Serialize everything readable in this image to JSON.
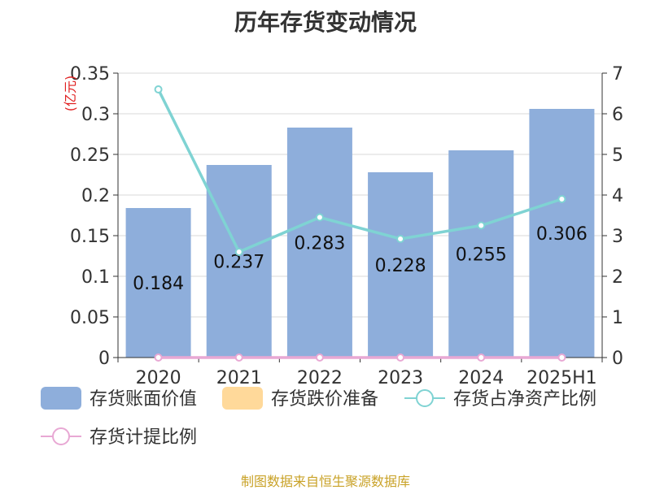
{
  "title": "历年存货变动情况",
  "footer": "制图数据来自恒生聚源数据库",
  "chart_data": {
    "type": "bar",
    "title": "历年存货变动情况",
    "categories": [
      "2020",
      "2021",
      "2022",
      "2023",
      "2024",
      "2025H1"
    ],
    "y_left": {
      "label": "(亿元)",
      "ylim": [
        0,
        0.35
      ],
      "ticks": [
        "0",
        "0.05",
        "0.1",
        "0.15",
        "0.2",
        "0.25",
        "0.3",
        "0.35"
      ]
    },
    "y_right": {
      "ylim": [
        0,
        7
      ],
      "ticks": [
        "0",
        "1",
        "2",
        "3",
        "4",
        "5",
        "6",
        "7"
      ]
    },
    "grid": true,
    "legend_position": "bottom",
    "series": [
      {
        "name": "存货账面价值",
        "type": "bar",
        "axis": "left",
        "color": "#8eaedb",
        "values": [
          0.184,
          0.237,
          0.283,
          0.228,
          0.255,
          0.306
        ],
        "labels": [
          "0.184",
          "0.237",
          "0.283",
          "0.228",
          "0.255",
          "0.306"
        ]
      },
      {
        "name": "存货跌价准备",
        "type": "bar",
        "axis": "left",
        "color": "#ffd99a",
        "values": [
          0,
          0,
          0,
          0,
          0,
          0
        ]
      },
      {
        "name": "存货占净资产比例",
        "type": "line",
        "axis": "right",
        "color": "#7fd3d3",
        "values": [
          6.6,
          2.6,
          3.45,
          2.92,
          3.25,
          3.9
        ]
      },
      {
        "name": "存货计提比例",
        "type": "line",
        "axis": "right",
        "color": "#e8a8d4",
        "values": [
          0,
          0,
          0,
          0,
          0,
          0
        ]
      }
    ]
  }
}
